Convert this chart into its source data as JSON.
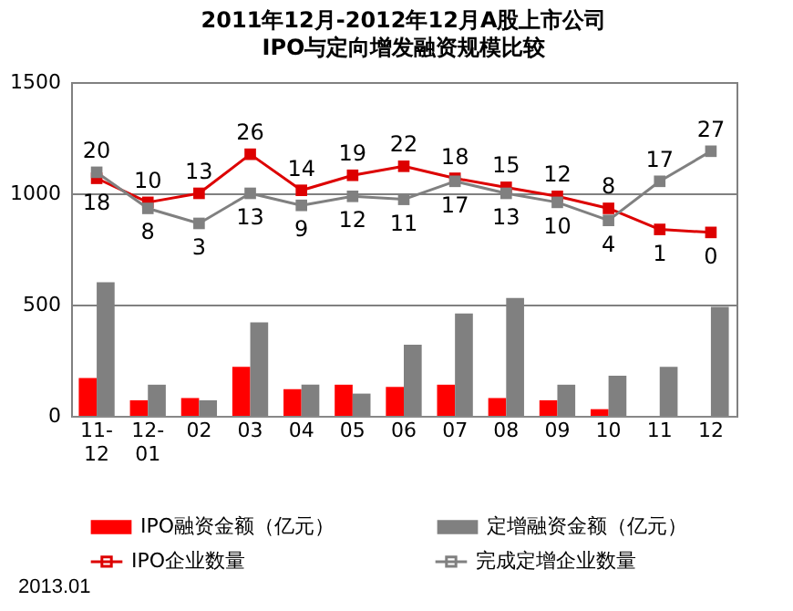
{
  "chart_data": {
    "type": "bar",
    "title": "2011年12月-2012年12月A股上市公司",
    "subtitle": "IPO与定向增发融资规模比较",
    "categories": [
      "11-\n12",
      "12-\n01",
      "02",
      "03",
      "04",
      "05",
      "06",
      "07",
      "08",
      "09",
      "10",
      "11",
      "12"
    ],
    "series": [
      {
        "name": "IPO融资金额（亿元）",
        "color": "#ff0000",
        "values": [
          170,
          70,
          80,
          220,
          120,
          140,
          130,
          140,
          80,
          70,
          30,
          0,
          0
        ]
      },
      {
        "name": "定增融资金额（亿元）",
        "color": "#808080",
        "values": [
          600,
          140,
          70,
          420,
          140,
          100,
          320,
          460,
          530,
          140,
          180,
          220,
          490
        ]
      },
      {
        "name": "IPO企业数量",
        "type": "line",
        "axis": "y2",
        "color": "#dd0000",
        "values": [
          18,
          10,
          13,
          26,
          14,
          19,
          22,
          18,
          15,
          12,
          8,
          1,
          0
        ],
        "value_labels": [
          "18",
          "10",
          "13",
          "26",
          "14",
          "19",
          "22",
          "18",
          "15",
          "12",
          "8",
          "1",
          "0"
        ]
      },
      {
        "name": "完成定增企业数量",
        "type": "line",
        "axis": "y2",
        "color": "#808080",
        "values": [
          20,
          8,
          3,
          13,
          9,
          12,
          11,
          17,
          13,
          10,
          4,
          17,
          27
        ],
        "value_labels": [
          "20",
          "8",
          "3",
          "13",
          "9",
          "12",
          "11",
          "17",
          "13",
          "10",
          "4",
          "17",
          "27"
        ]
      }
    ],
    "ylim": [
      0,
      1500
    ],
    "yticks": [
      0,
      500,
      1000,
      1500
    ],
    "y2lim": [
      -61,
      50
    ],
    "grid": "y",
    "legend": "bottom",
    "marker": "square",
    "annotations": [
      "2013.01"
    ]
  }
}
